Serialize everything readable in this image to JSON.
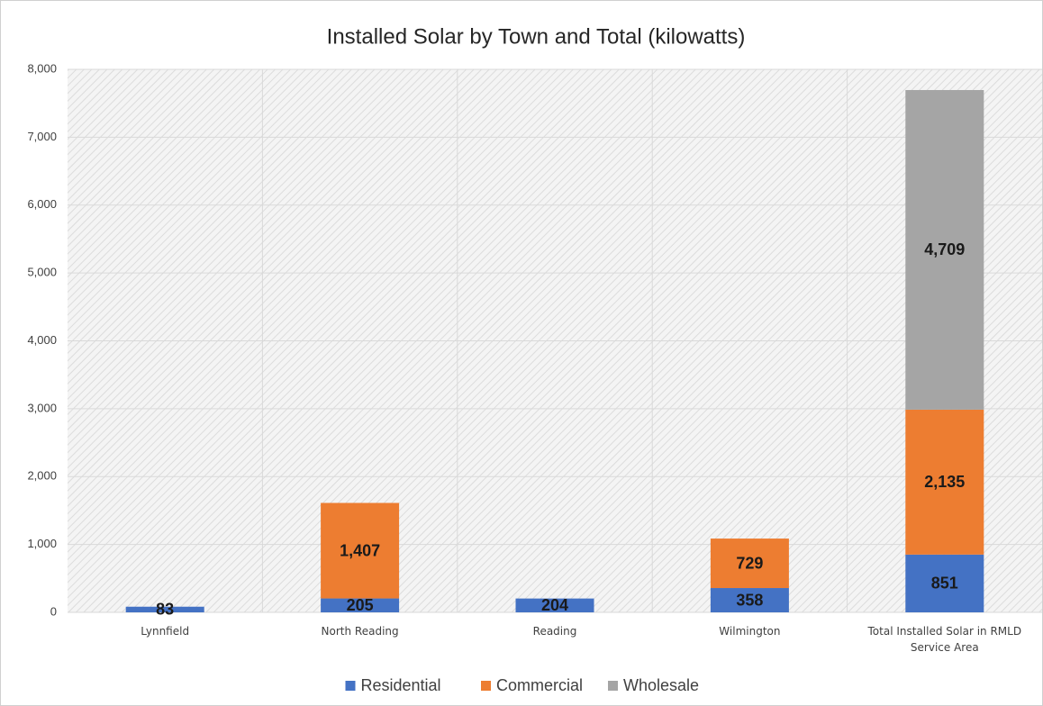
{
  "chart_data": {
    "type": "stacked_bar",
    "title": "Installed Solar by Town and Total (kilowatts)",
    "categories": [
      "Lynnfield",
      "North Reading",
      "Reading",
      "Wilmington",
      "Total Installed Solar in RMLD Service Area"
    ],
    "series": [
      {
        "name": "Residential",
        "color": "#4472c4",
        "values": [
          83,
          205,
          204,
          358,
          851
        ],
        "value_labels": [
          "83",
          "205",
          "204",
          "358",
          "851"
        ]
      },
      {
        "name": "Commercial",
        "color": "#ed7d31",
        "values": [
          null,
          1407,
          null,
          729,
          2135
        ],
        "value_labels": [
          null,
          "1,407",
          null,
          "729",
          "2,135"
        ]
      },
      {
        "name": "Wholesale",
        "color": "#a5a5a5",
        "values": [
          null,
          null,
          null,
          null,
          4709
        ],
        "value_labels": [
          null,
          null,
          null,
          null,
          "4,709"
        ]
      }
    ],
    "ylim": [
      0,
      8000
    ],
    "yticks": [
      0,
      {
        "value": 1000,
        "label": "1,000"
      },
      {
        "value": 2000,
        "label": "2,000"
      },
      {
        "value": 3000,
        "label": "3,000"
      },
      {
        "value": 4000,
        "label": "4,000"
      },
      {
        "value": 5000,
        "label": "5,000"
      },
      {
        "value": 6000,
        "label": "6,000"
      },
      {
        "value": 7000,
        "label": "7,000"
      },
      {
        "value": 8000,
        "label": "8,000"
      }
    ],
    "grid": true,
    "legend": "bottom"
  }
}
